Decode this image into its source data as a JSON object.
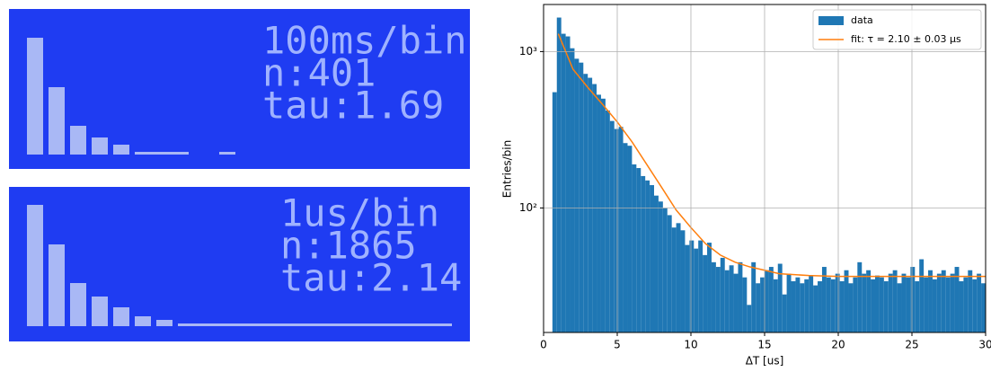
{
  "lcd_panels": [
    {
      "lines": [
        "100ms/bin",
        "n:401",
        "tau:1.69"
      ]
    },
    {
      "lines": [
        "1us/bin",
        "n:1865",
        "tau:2.14"
      ]
    }
  ],
  "chart_data": {
    "type": "histogram",
    "xlabel": "ΔT [us]",
    "ylabel": "Entries/bin",
    "xlim": [
      0,
      30
    ],
    "xticks": [
      0,
      5,
      10,
      15,
      20,
      25,
      30
    ],
    "ylim": [
      16,
      2000
    ],
    "yscale": "log",
    "yticks": [
      {
        "value": 100,
        "label": "10²"
      },
      {
        "value": 1000,
        "label": "10³"
      }
    ],
    "grid": true,
    "legend": "upper right",
    "bins": [
      0.6,
      0.9,
      1.2,
      1.5,
      1.8,
      2.1,
      2.4,
      2.7,
      3.0,
      3.3,
      3.6,
      3.9,
      4.2,
      4.5,
      4.8,
      5.1,
      5.4,
      5.7,
      6.0,
      6.3,
      6.6,
      6.9,
      7.2,
      7.5,
      7.8,
      8.1,
      8.4,
      8.7,
      9.0,
      9.3,
      9.6,
      9.9,
      10.2,
      10.5,
      10.8,
      11.1,
      11.4,
      11.7,
      12.0,
      12.3,
      12.6,
      12.9,
      13.2,
      13.5,
      13.8,
      14.1,
      14.4,
      14.7,
      15.0,
      15.3,
      15.6,
      15.9,
      16.2,
      16.5,
      16.8,
      17.1,
      17.4,
      17.7,
      18.0,
      18.3,
      18.6,
      18.9,
      19.2,
      19.5,
      19.8,
      20.1,
      20.4,
      20.7,
      21.0,
      21.3,
      21.6,
      21.9,
      22.2,
      22.5,
      22.8,
      23.1,
      23.4,
      23.7,
      24.0,
      24.3,
      24.6,
      24.9,
      25.2,
      25.5,
      25.8,
      26.1,
      26.4,
      26.7,
      27.0,
      27.3,
      27.6,
      27.9,
      28.2,
      28.5,
      28.8,
      29.1,
      29.4,
      29.7,
      30.0
    ],
    "series": [
      {
        "name": "data",
        "color": "#1f77b4",
        "values": [
          550,
          1650,
          1300,
          1250,
          1050,
          900,
          850,
          720,
          680,
          620,
          530,
          500,
          420,
          360,
          320,
          330,
          260,
          250,
          190,
          180,
          160,
          150,
          140,
          120,
          110,
          100,
          90,
          75,
          80,
          72,
          58,
          62,
          55,
          62,
          50,
          60,
          45,
          42,
          48,
          40,
          43,
          38,
          45,
          36,
          24,
          45,
          33,
          36,
          40,
          42,
          35,
          44,
          28,
          38,
          34,
          36,
          33,
          35,
          37,
          32,
          34,
          42,
          36,
          35,
          38,
          34,
          40,
          33,
          36,
          45,
          38,
          40,
          35,
          37,
          36,
          34,
          38,
          40,
          33,
          38,
          36,
          42,
          34,
          47,
          36,
          40,
          35,
          38,
          40,
          36,
          38,
          42,
          34,
          36,
          40,
          35,
          38,
          33
        ]
      },
      {
        "name": "fit: τ = 2.10 ± 0.03 μs",
        "color": "#ff7f0e",
        "x": [
          1,
          2,
          3,
          4,
          5,
          6,
          7,
          8,
          9,
          10,
          11,
          12,
          13,
          14,
          15,
          16,
          18,
          20,
          22,
          24,
          26,
          28,
          30
        ],
        "values": [
          1300,
          770,
          590,
          460,
          355,
          265,
          190,
          136,
          97,
          75,
          59,
          50,
          45,
          42,
          40,
          38,
          37,
          36.5,
          36.5,
          36.5,
          36.5,
          36.5,
          36.5
        ]
      }
    ]
  }
}
